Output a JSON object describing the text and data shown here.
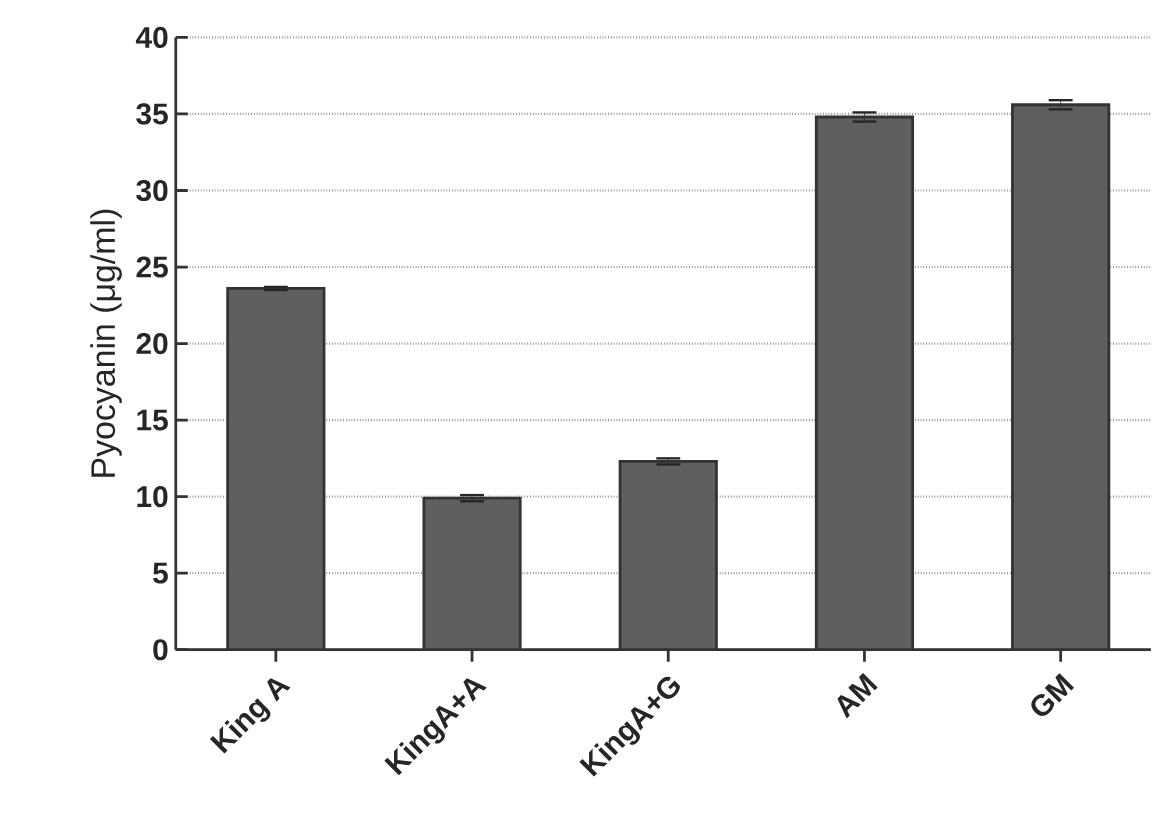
{
  "chart_data": {
    "type": "bar",
    "ylabel": "Pyocyanin (μg/ml)",
    "categories": [
      "King A",
      "KingA+A",
      "KingA+G",
      "AM",
      "GM"
    ],
    "values": [
      23.6,
      9.9,
      12.3,
      34.8,
      35.6
    ],
    "errors": [
      0.1,
      0.2,
      0.2,
      0.3,
      0.3
    ],
    "color": "#5f5f5f",
    "ylim": [
      0,
      40
    ],
    "yticks": [
      0,
      5,
      10,
      15,
      20,
      25,
      30,
      35,
      40
    ],
    "grid": "y"
  }
}
